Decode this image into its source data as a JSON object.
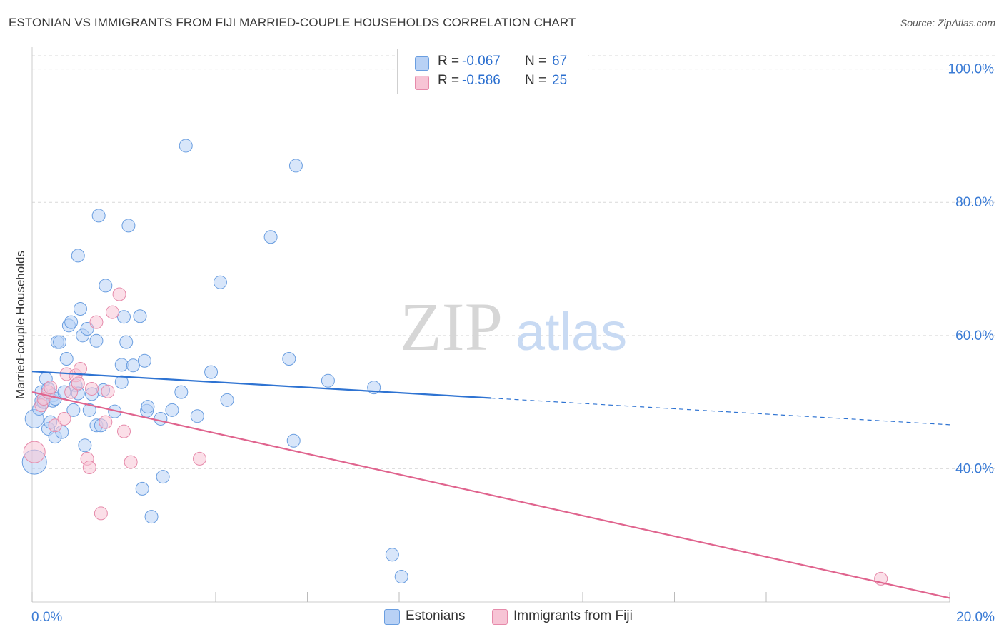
{
  "header": {
    "title": "ESTONIAN VS IMMIGRANTS FROM FIJI MARRIED-COUPLE HOUSEHOLDS CORRELATION CHART",
    "source": "Source: ZipAtlas.com"
  },
  "watermark": {
    "zip": "ZIP",
    "atlas": "atlas"
  },
  "legend": {
    "items": [
      {
        "r_label": "R =",
        "r_value": "-0.067",
        "n_label": "N =",
        "n_value": "67"
      },
      {
        "r_label": "R =",
        "r_value": "-0.586",
        "n_label": "N =",
        "n_value": "25"
      }
    ]
  },
  "bottom_legend": {
    "series1": "Estonians",
    "series2": "Immigrants from Fiji"
  },
  "colors": {
    "blue_fill": "#b8d1f5",
    "blue_stroke": "#6a9ee0",
    "blue_line": "#2e73d2",
    "pink_fill": "#f7c4d5",
    "pink_stroke": "#e68aaa",
    "pink_line": "#e0648e",
    "axis_text": "#3a7bd5",
    "grid": "#d9d9d9"
  },
  "chart_data": {
    "type": "scatter",
    "title": "ESTONIAN VS IMMIGRANTS FROM FIJI MARRIED-COUPLE HOUSEHOLDS CORRELATION CHART",
    "xlabel": "",
    "ylabel": "Married-couple Households",
    "xlim": [
      0,
      20
    ],
    "ylim": [
      20,
      102
    ],
    "x_tick_labels": [
      "0.0%",
      "20.0%"
    ],
    "y_ticks": [
      40,
      60,
      80,
      100
    ],
    "y_tick_labels": [
      "40.0%",
      "60.0%",
      "80.0%",
      "100.0%"
    ],
    "grid": true,
    "legend_position": "top-center",
    "series": [
      {
        "name": "Estonians",
        "color": "#b8d1f5",
        "r": -0.067,
        "n": 67,
        "trend": {
          "x0": 0,
          "y0": 54.6,
          "x1": 10,
          "y1": 50.6,
          "dashed_to_x": 20,
          "dashed_to_y": 46.6
        },
        "points": [
          [
            0.05,
            47.5
          ],
          [
            0.05,
            41.0
          ],
          [
            0.15,
            49.0
          ],
          [
            0.2,
            50.2
          ],
          [
            0.2,
            51.5
          ],
          [
            0.25,
            50.0
          ],
          [
            0.3,
            53.5
          ],
          [
            0.35,
            52.0
          ],
          [
            0.35,
            46.0
          ],
          [
            0.4,
            47.0
          ],
          [
            0.45,
            51.0
          ],
          [
            0.45,
            50.2
          ],
          [
            0.5,
            44.8
          ],
          [
            0.5,
            50.5
          ],
          [
            0.55,
            59.0
          ],
          [
            0.6,
            59.0
          ],
          [
            0.65,
            45.5
          ],
          [
            0.7,
            51.5
          ],
          [
            0.75,
            56.5
          ],
          [
            0.8,
            61.5
          ],
          [
            0.85,
            62.0
          ],
          [
            0.9,
            48.8
          ],
          [
            0.95,
            52.5
          ],
          [
            1.0,
            51.3
          ],
          [
            1.0,
            72.0
          ],
          [
            1.05,
            64.0
          ],
          [
            1.1,
            60.0
          ],
          [
            1.15,
            43.5
          ],
          [
            1.2,
            61.0
          ],
          [
            1.25,
            48.8
          ],
          [
            1.3,
            51.2
          ],
          [
            1.4,
            59.2
          ],
          [
            1.4,
            46.5
          ],
          [
            1.45,
            78.0
          ],
          [
            1.5,
            46.5
          ],
          [
            1.55,
            51.8
          ],
          [
            1.6,
            67.5
          ],
          [
            1.8,
            48.6
          ],
          [
            1.95,
            55.6
          ],
          [
            1.95,
            53.0
          ],
          [
            2.0,
            62.8
          ],
          [
            2.05,
            59.0
          ],
          [
            2.1,
            76.5
          ],
          [
            2.2,
            55.5
          ],
          [
            2.35,
            62.9
          ],
          [
            2.4,
            37.0
          ],
          [
            2.45,
            56.2
          ],
          [
            2.5,
            48.7
          ],
          [
            2.52,
            49.3
          ],
          [
            2.6,
            32.8
          ],
          [
            2.8,
            47.5
          ],
          [
            2.85,
            38.8
          ],
          [
            3.05,
            48.8
          ],
          [
            3.25,
            51.5
          ],
          [
            3.35,
            88.5
          ],
          [
            3.6,
            47.9
          ],
          [
            3.9,
            54.5
          ],
          [
            4.1,
            68.0
          ],
          [
            4.25,
            50.3
          ],
          [
            5.2,
            74.8
          ],
          [
            5.6,
            56.5
          ],
          [
            5.7,
            44.2
          ],
          [
            5.75,
            85.5
          ],
          [
            6.45,
            53.2
          ],
          [
            7.45,
            52.2
          ],
          [
            7.85,
            27.1
          ],
          [
            8.05,
            23.8
          ]
        ]
      },
      {
        "name": "Immigrants from Fiji",
        "color": "#f7c4d5",
        "r": -0.586,
        "n": 25,
        "trend": {
          "x0": 0,
          "y0": 51.5,
          "x1": 20,
          "y1": 20.6
        },
        "points": [
          [
            0.05,
            42.5
          ],
          [
            0.2,
            49.5
          ],
          [
            0.25,
            50.5
          ],
          [
            0.35,
            51.5
          ],
          [
            0.4,
            52.2
          ],
          [
            0.5,
            46.5
          ],
          [
            0.7,
            47.5
          ],
          [
            0.75,
            54.2
          ],
          [
            0.85,
            51.5
          ],
          [
            0.95,
            54.0
          ],
          [
            1.0,
            52.8
          ],
          [
            1.05,
            55.0
          ],
          [
            1.2,
            41.5
          ],
          [
            1.25,
            40.2
          ],
          [
            1.3,
            52.0
          ],
          [
            1.4,
            62.0
          ],
          [
            1.5,
            33.3
          ],
          [
            1.6,
            47.0
          ],
          [
            1.65,
            51.6
          ],
          [
            1.75,
            63.5
          ],
          [
            1.9,
            66.2
          ],
          [
            2.0,
            45.6
          ],
          [
            2.15,
            41.0
          ],
          [
            3.65,
            41.5
          ],
          [
            18.5,
            23.5
          ]
        ]
      }
    ]
  }
}
